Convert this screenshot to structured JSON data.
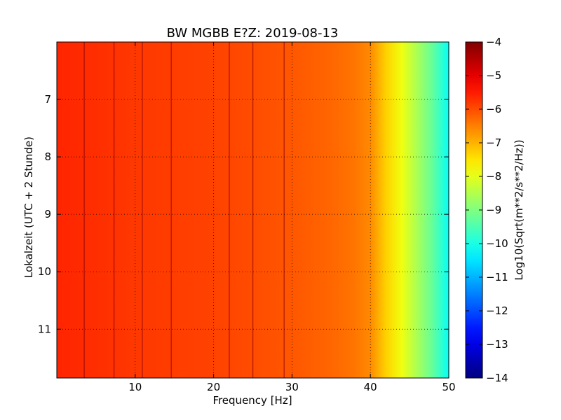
{
  "chart_data": {
    "type": "heatmap",
    "title": "BW MGBB E?Z: 2019-08-13",
    "xlabel": "Frequency [Hz]",
    "ylabel": "Lokalzeit (UTC + 2 Stunde)",
    "xlim": [
      0,
      50
    ],
    "ylim": [
      6,
      11.85
    ],
    "y_inverted": true,
    "x_ticks": [
      10,
      20,
      30,
      40,
      50
    ],
    "y_ticks": [
      7,
      8,
      9,
      10,
      11
    ],
    "grid": true,
    "colormap": "jet",
    "colorbar": {
      "label": "Log10(Sqrt(m**2/s**2/Hz))",
      "range": [
        -14,
        -4
      ],
      "ticks": [
        -4,
        -5,
        -6,
        -7,
        -8,
        -9,
        -10,
        -11,
        -12,
        -13,
        -14
      ]
    },
    "mean_spectrum": {
      "frequency_hz": [
        0,
        5,
        10,
        15,
        20,
        25,
        30,
        35,
        38,
        40,
        42,
        44,
        46,
        48,
        50
      ],
      "log10_amplitude": [
        -5.6,
        -5.7,
        -5.8,
        -5.85,
        -5.9,
        -6.0,
        -6.1,
        -6.25,
        -6.4,
        -6.6,
        -7.3,
        -7.9,
        -8.6,
        -9.3,
        -10.2
      ]
    },
    "spectral_lines_hz": [
      3.5,
      7.3,
      10.9,
      14.6,
      22.0,
      25.0,
      29.0
    ]
  }
}
